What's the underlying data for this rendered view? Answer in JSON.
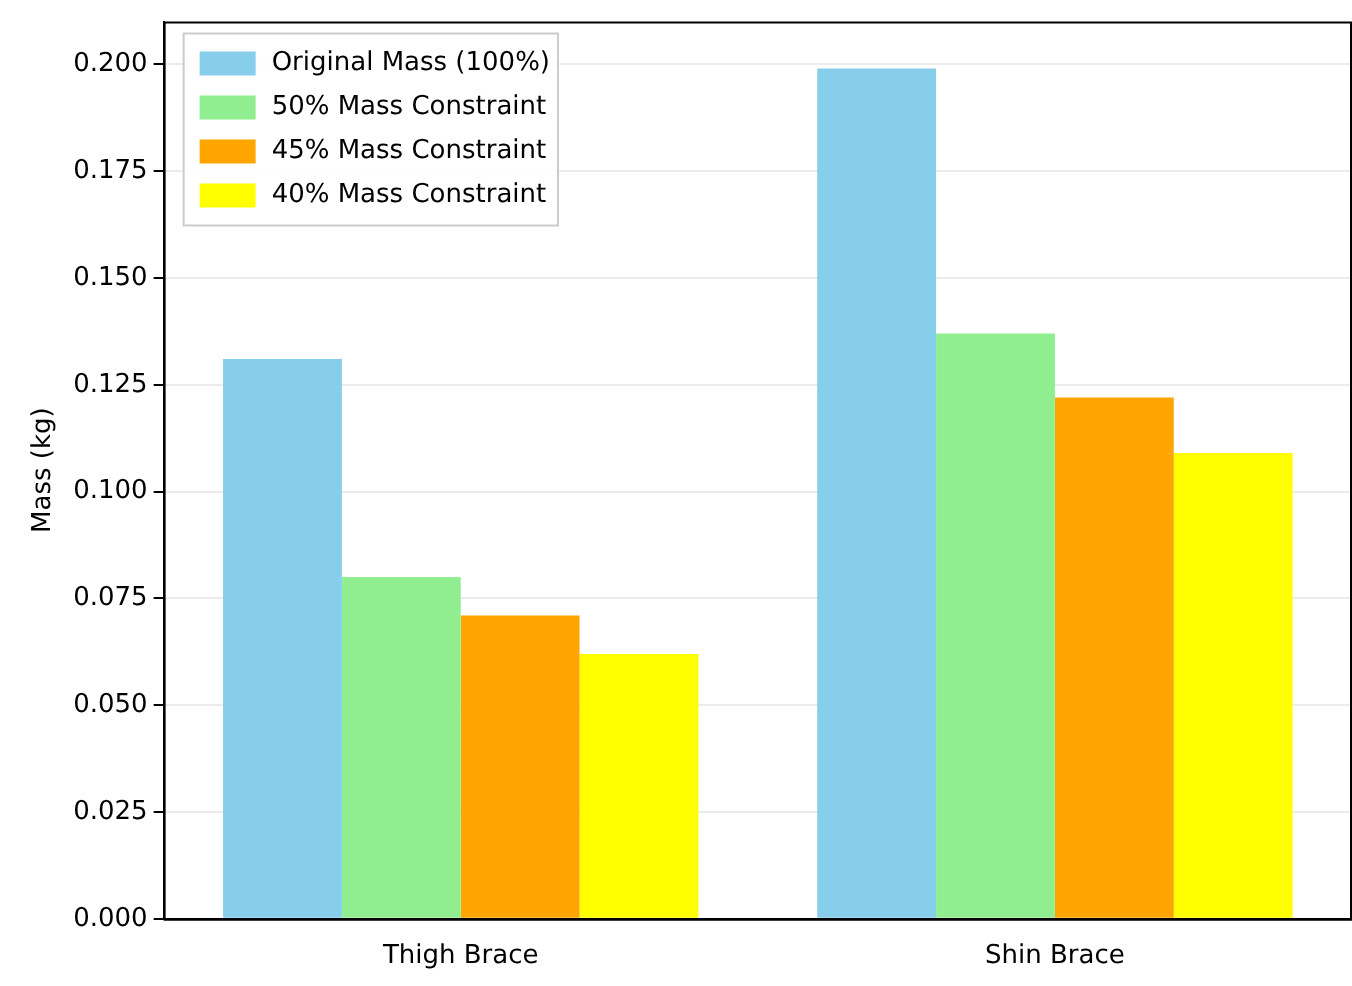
{
  "chart_data": {
    "type": "bar",
    "ylabel": "Mass (kg)",
    "categories": [
      "Thigh Brace",
      "Shin Brace"
    ],
    "series": [
      {
        "name": "Original Mass (100%)",
        "color": "#87ceeb",
        "values": [
          0.131,
          0.199
        ]
      },
      {
        "name": "50% Mass Constraint",
        "color": "#90ee90",
        "values": [
          0.08,
          0.137
        ]
      },
      {
        "name": "45% Mass Constraint",
        "color": "#ffa500",
        "values": [
          0.071,
          0.122
        ]
      },
      {
        "name": "40% Mass Constraint",
        "color": "#ffff00",
        "values": [
          0.062,
          0.109
        ]
      }
    ],
    "ylim": [
      0,
      0.21
    ],
    "yticks": [
      {
        "value": 0,
        "label": "0.000"
      },
      {
        "value": 0.025,
        "label": "0.025"
      },
      {
        "value": 0.05,
        "label": "0.050"
      },
      {
        "value": 0.075,
        "label": "0.075"
      },
      {
        "value": 0.1,
        "label": "0.100"
      },
      {
        "value": 0.125,
        "label": "0.125"
      },
      {
        "value": 0.15,
        "label": "0.150"
      },
      {
        "value": 0.175,
        "label": "0.175"
      },
      {
        "value": 0.2,
        "label": "0.200"
      }
    ],
    "grid": "y",
    "legend": "top left"
  }
}
